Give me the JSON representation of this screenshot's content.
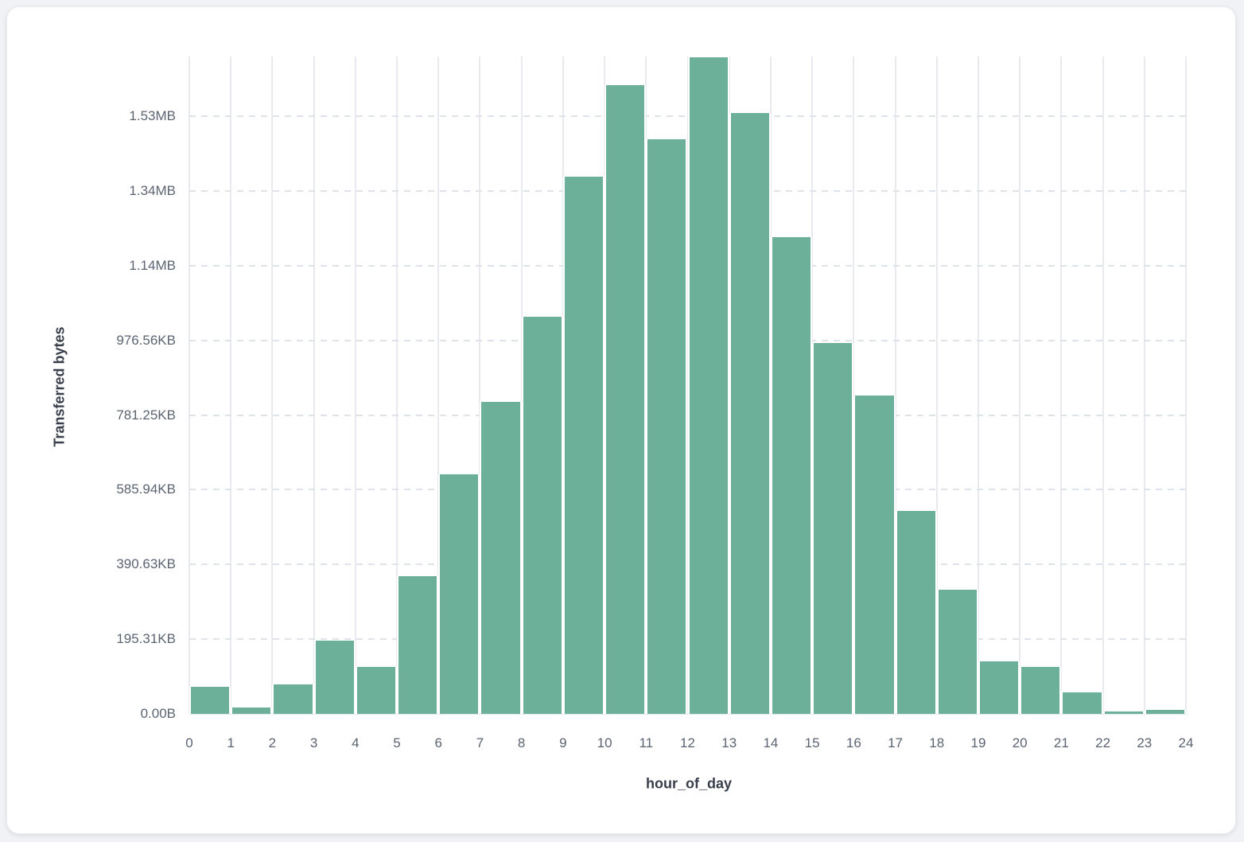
{
  "page": {
    "background_color": "#f1f2f5",
    "card_background": "#ffffff"
  },
  "chart_data": {
    "type": "bar",
    "title": "",
    "xlabel": "hour_of_day",
    "ylabel": "Transferred bytes",
    "categories": [
      "0",
      "1",
      "2",
      "3",
      "4",
      "5",
      "6",
      "7",
      "8",
      "9",
      "10",
      "11",
      "12",
      "13",
      "14",
      "15",
      "16",
      "17",
      "18",
      "19",
      "20",
      "21",
      "22",
      "23"
    ],
    "values_bytes": [
      72000,
      17000,
      79000,
      196000,
      126000,
      369000,
      642000,
      836000,
      1064000,
      1438000,
      1683000,
      1538000,
      1758000,
      1608000,
      1276000,
      994000,
      853000,
      544000,
      333000,
      141000,
      126000,
      58000,
      6400,
      10700
    ],
    "x_tick_labels": [
      "0",
      "1",
      "2",
      "3",
      "4",
      "5",
      "6",
      "7",
      "8",
      "9",
      "10",
      "11",
      "12",
      "13",
      "14",
      "15",
      "16",
      "17",
      "18",
      "19",
      "20",
      "21",
      "22",
      "23",
      "24"
    ],
    "y_ticks": [
      {
        "value": 0,
        "label": "0.00B"
      },
      {
        "value": 200000,
        "label": "195.31KB"
      },
      {
        "value": 400000,
        "label": "390.63KB"
      },
      {
        "value": 600000,
        "label": "585.94KB"
      },
      {
        "value": 800000,
        "label": "781.25KB"
      },
      {
        "value": 1000000,
        "label": "976.56KB"
      },
      {
        "value": 1200000,
        "label": "1.14MB"
      },
      {
        "value": 1400000,
        "label": "1.34MB"
      },
      {
        "value": 1600000,
        "label": "1.53MB"
      }
    ],
    "xlim": [
      0,
      24
    ],
    "ylim": [
      0,
      1760000
    ],
    "bar_color": "#6DB09A",
    "grid": {
      "vertical_color": "#e8eaef",
      "horizontal_dashed_color": "#dee2e9",
      "horizontal_style": "dashed",
      "vertical_style": "solid"
    },
    "legend": "none"
  }
}
